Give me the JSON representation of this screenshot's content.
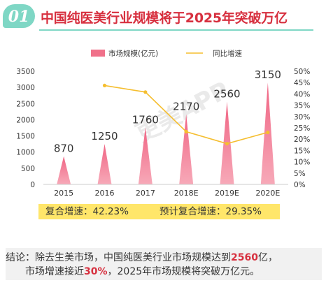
{
  "header": {
    "badge": "01",
    "title": "中国纯医美行业规模将于2025年突破万亿"
  },
  "chart_data": {
    "type": "bar+line",
    "categories": [
      "2015",
      "2016",
      "2017",
      "2018E",
      "2019E",
      "2020E"
    ],
    "series": [
      {
        "name": "市场规模(亿元)",
        "type": "triangle-bar",
        "axis": "left",
        "values": [
          870,
          1250,
          1760,
          2170,
          2560,
          3150
        ],
        "color": "#f0718a"
      },
      {
        "name": "同比增速",
        "type": "line",
        "axis": "right",
        "values": [
          null,
          43.7,
          40.8,
          23.3,
          18.0,
          23.0
        ],
        "color": "#f5be2f"
      }
    ],
    "left_axis": {
      "min": 0,
      "max": 3500,
      "step": 500,
      "ticks": [
        "0",
        "500",
        "1000",
        "1500",
        "2000",
        "2500",
        "3000",
        "3500"
      ]
    },
    "right_axis": {
      "min": 0,
      "max": 50,
      "step": 5,
      "ticks": [
        "0%",
        "5%",
        "10%",
        "15%",
        "20%",
        "25%",
        "30%",
        "35%",
        "40%",
        "45%",
        "50%"
      ]
    },
    "legend_position": "top"
  },
  "summary": {
    "cagr": "复合增速：42.23%",
    "forecast_cagr": "预计复合增速：29.35%"
  },
  "conclusion": {
    "line1_prefix": "结论：除去生美市场，中国纯医美行业市场规模达到",
    "line1_value": "2560",
    "line1_suffix": "亿，",
    "line2_prefix": "市场增速接近",
    "line2_value": "30%",
    "line2_suffix": "，2025年市场规模将突破万亿元。"
  },
  "watermark": "更美APP"
}
